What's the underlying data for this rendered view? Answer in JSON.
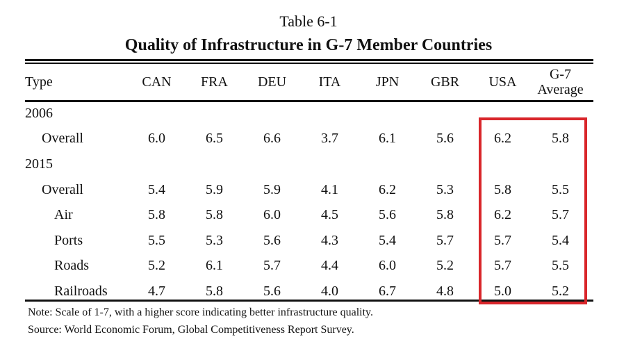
{
  "table_number": "Table 6-1",
  "title": "Quality of Infrastructure in G-7 Member Countries",
  "columns": [
    "Type",
    "CAN",
    "FRA",
    "DEU",
    "ITA",
    "JPN",
    "GBR",
    "USA",
    "G-7",
    "Average"
  ],
  "rows": [
    {
      "label": "2006",
      "level": 0,
      "values": []
    },
    {
      "label": "Overall",
      "level": 1,
      "values": [
        "6.0",
        "6.5",
        "6.6",
        "3.7",
        "6.1",
        "5.6",
        "6.2",
        "5.8"
      ]
    },
    {
      "label": "2015",
      "level": 0,
      "values": []
    },
    {
      "label": "Overall",
      "level": 1,
      "values": [
        "5.4",
        "5.9",
        "5.9",
        "4.1",
        "6.2",
        "5.3",
        "5.8",
        "5.5"
      ]
    },
    {
      "label": "Air",
      "level": 2,
      "values": [
        "5.8",
        "5.8",
        "6.0",
        "4.5",
        "5.6",
        "5.8",
        "6.2",
        "5.7"
      ]
    },
    {
      "label": "Ports",
      "level": 2,
      "values": [
        "5.5",
        "5.3",
        "5.6",
        "4.3",
        "5.4",
        "5.7",
        "5.7",
        "5.4"
      ]
    },
    {
      "label": "Roads",
      "level": 2,
      "values": [
        "5.2",
        "6.1",
        "5.7",
        "4.4",
        "6.0",
        "5.2",
        "5.7",
        "5.5"
      ]
    },
    {
      "label": "Railroads",
      "level": 2,
      "values": [
        "4.7",
        "5.8",
        "5.6",
        "4.0",
        "6.7",
        "4.8",
        "5.0",
        "5.2"
      ]
    }
  ],
  "highlight_color": "#d9262b",
  "note": "Note: Scale of 1-7, with a higher score indicating better infrastructure quality.",
  "source": "Source: World Economic Forum, Global Competitiveness Report Survey."
}
